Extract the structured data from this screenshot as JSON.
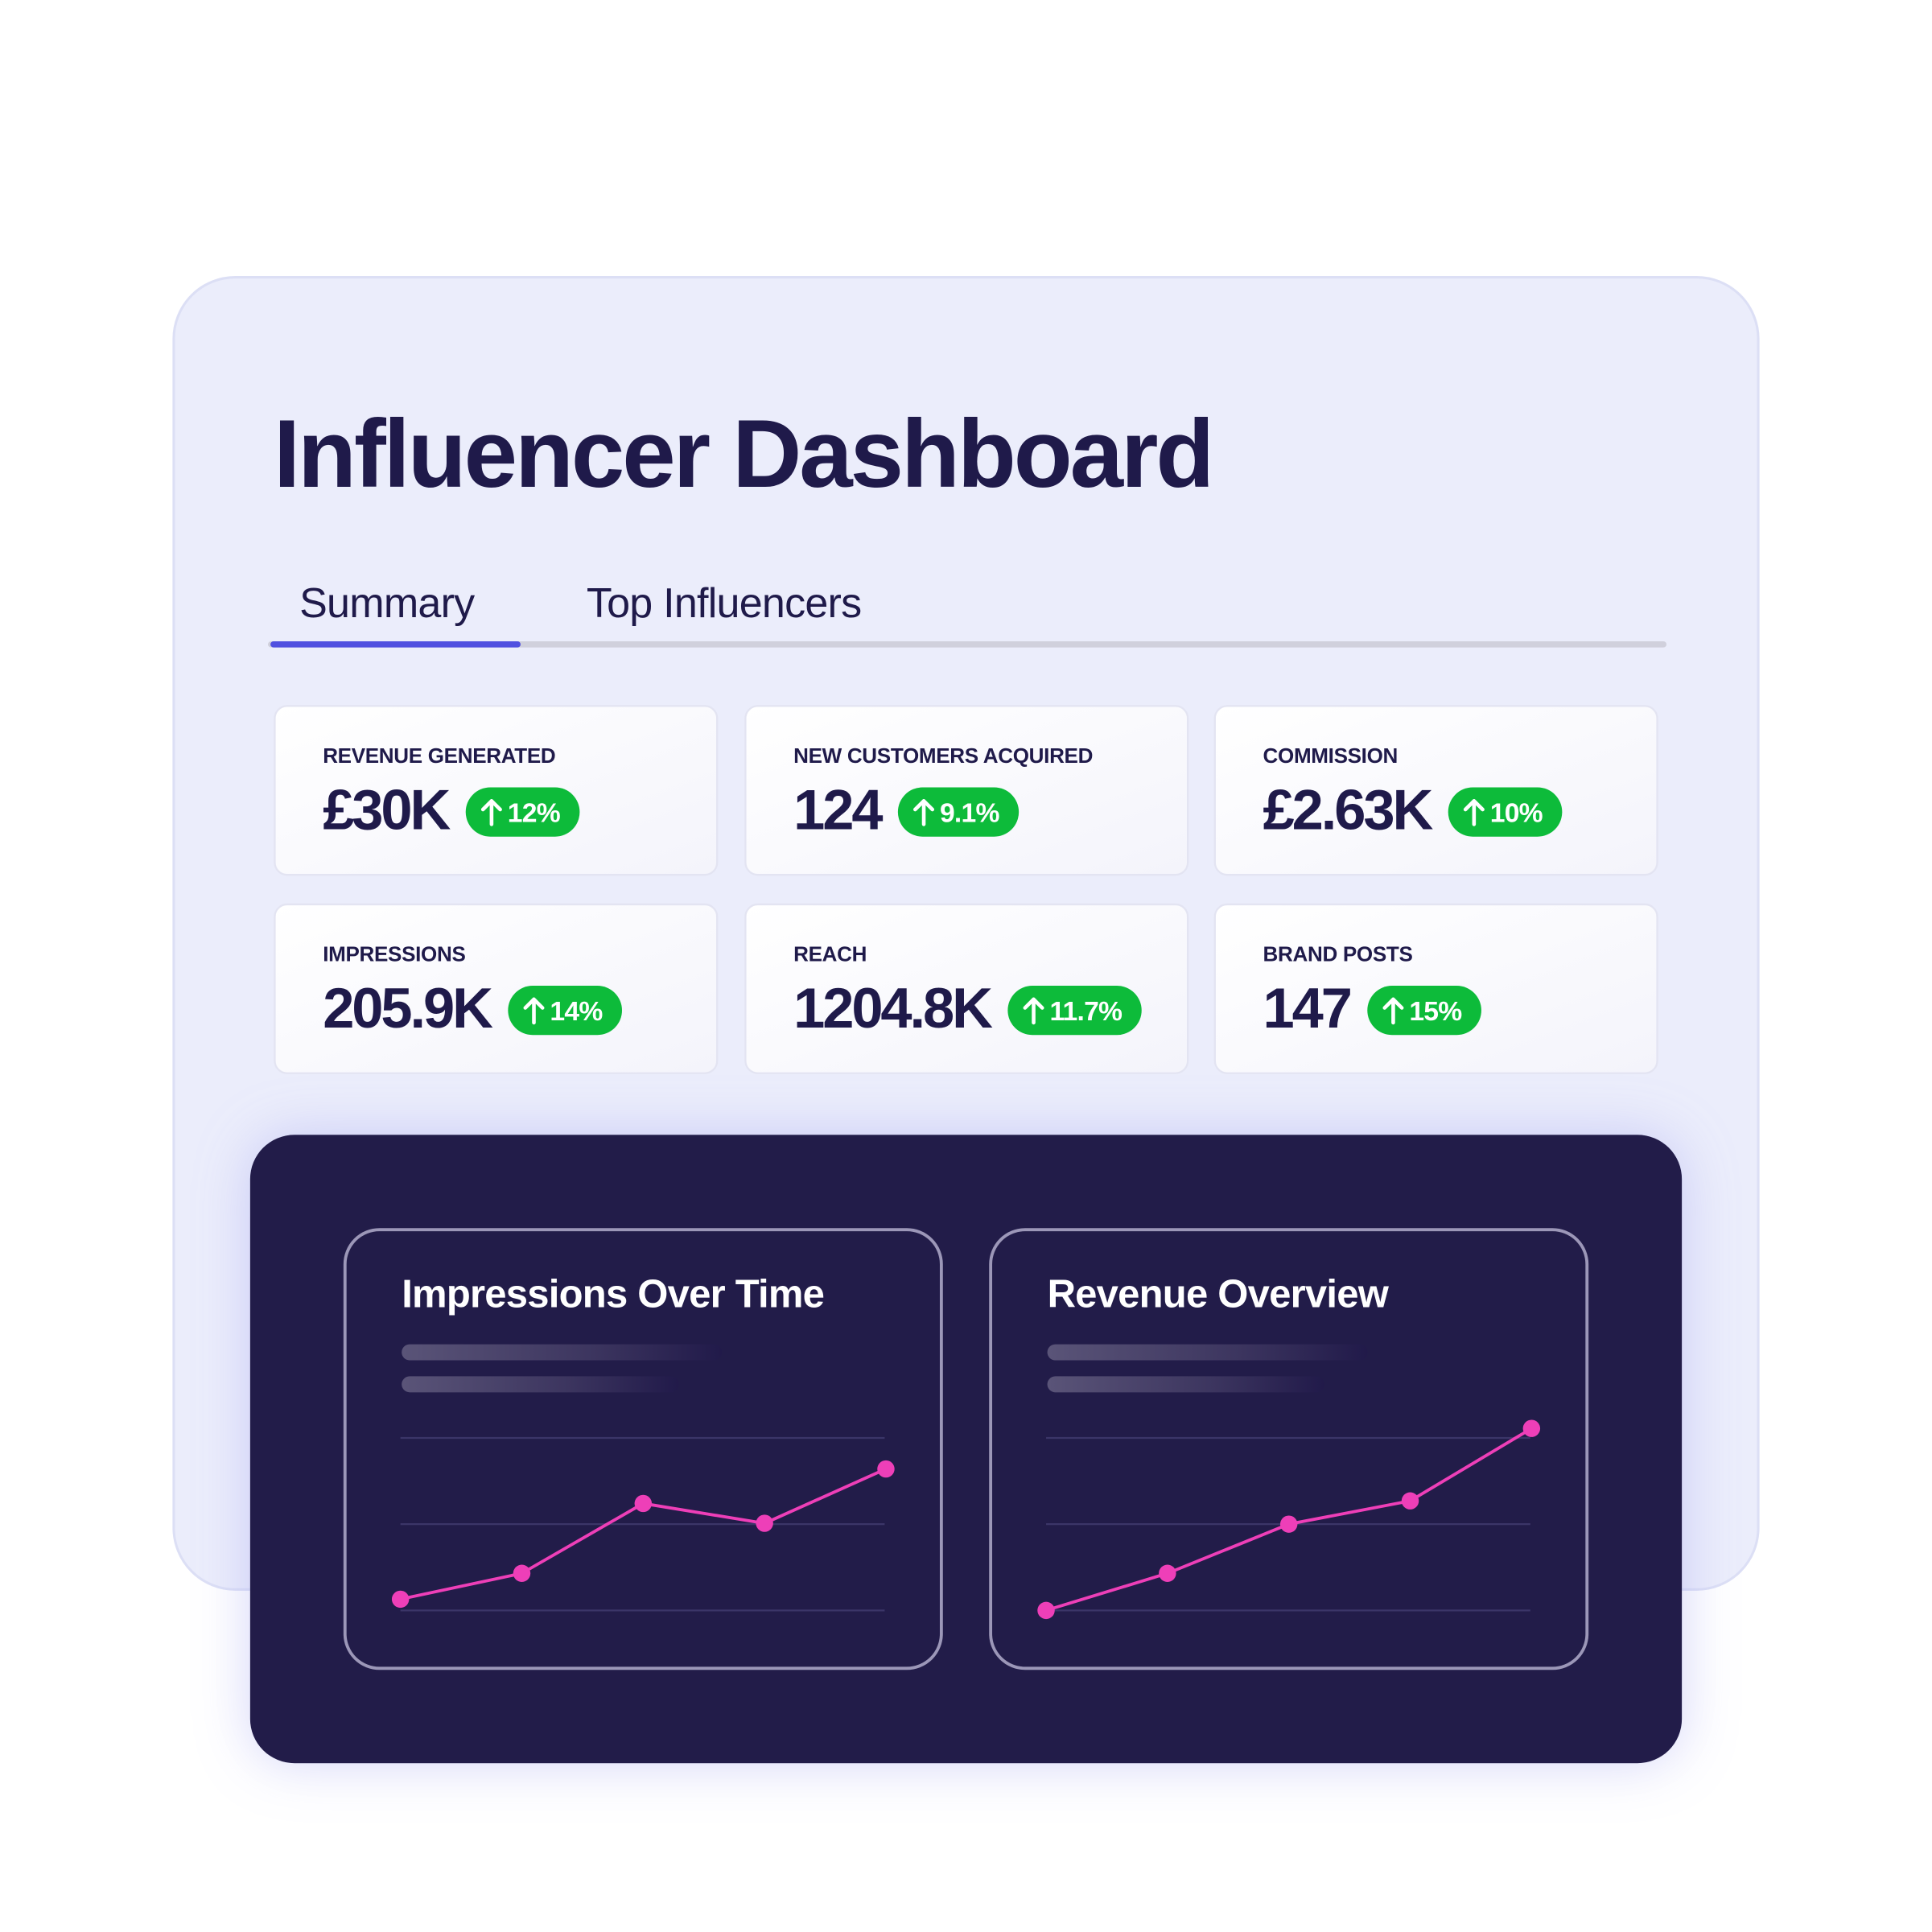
{
  "header": {
    "title": "Influencer Dashboard"
  },
  "tabs": [
    "Summary",
    "Top Influencers"
  ],
  "cards": [
    {
      "label": "REVENUE GENERATED",
      "value": "£30K",
      "change": "12%"
    },
    {
      "label": "NEW CUSTOMERS ACQUIRED",
      "value": "124",
      "change": "9.1%"
    },
    {
      "label": "COMMISSION",
      "value": "£2.63K",
      "change": "10%"
    },
    {
      "label": "IMPRESSIONS",
      "value": "205.9K",
      "change": "14%"
    },
    {
      "label": "REACH",
      "value": "1204.8K",
      "change": "11.7%"
    },
    {
      "label": "BRAND POSTS",
      "value": "147",
      "change": "15%"
    }
  ],
  "chart_data": [
    {
      "type": "line",
      "title": "Impressions Over Time",
      "categories": [
        null,
        null,
        null,
        null,
        null
      ],
      "values": [
        0.13,
        0.43,
        1.24,
        1.01,
        1.64
      ],
      "color": "#ee3fb8",
      "ylim": [
        0,
        2.2
      ],
      "yticks": [
        0,
        1,
        2
      ],
      "grid": true
    },
    {
      "type": "line",
      "title": "Revenue Overview",
      "categories": [
        null,
        null,
        null,
        null,
        null
      ],
      "values": [
        0,
        0.43,
        1.0,
        1.27,
        2.11
      ],
      "color": "#ee3fb8",
      "ylim": [
        0,
        2.2
      ],
      "yticks": [
        0,
        1,
        2
      ],
      "grid": true
    }
  ]
}
